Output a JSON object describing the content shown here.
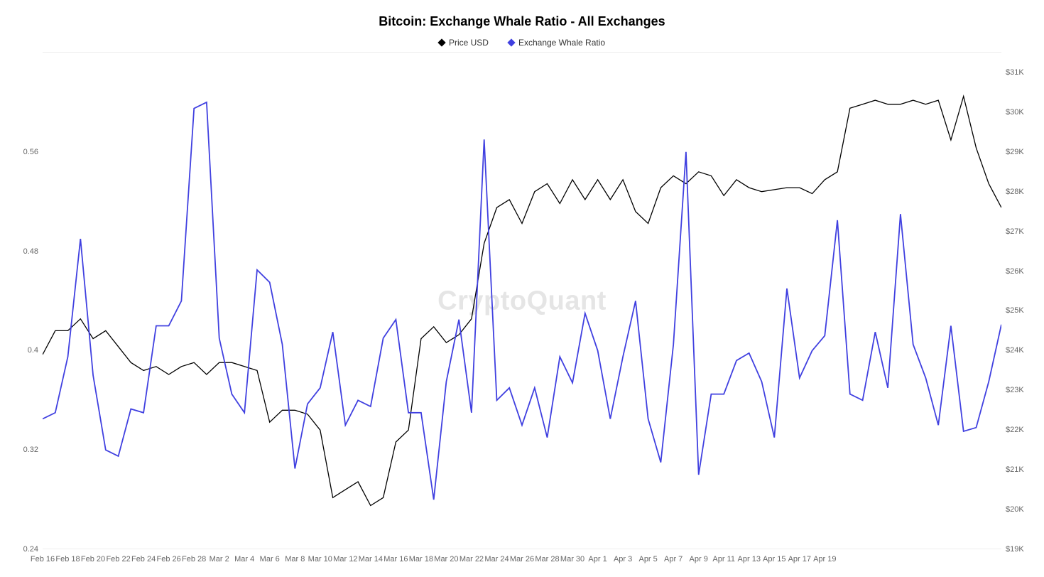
{
  "chart": {
    "type": "line-dual-axis",
    "title": "Bitcoin: Exchange Whale Ratio - All Exchanges",
    "title_fontsize": 18,
    "title_weight": 700,
    "watermark": "CryptoQuant",
    "watermark_color": "#d0d0d0",
    "background_color": "#ffffff",
    "grid_color": "#eeeeee",
    "axis_label_color": "#666666",
    "axis_label_fontsize": 11,
    "legend": [
      {
        "label": "Price USD",
        "color": "#000000",
        "marker": "diamond"
      },
      {
        "label": "Exchange Whale Ratio",
        "color": "#4040e0",
        "marker": "diamond"
      }
    ],
    "x": {
      "labels": [
        "Feb 16",
        "Feb 18",
        "Feb 20",
        "Feb 22",
        "Feb 24",
        "Feb 26",
        "Feb 28",
        "Mar 2",
        "Mar 4",
        "Mar 6",
        "Mar 8",
        "Mar 10",
        "Mar 12",
        "Mar 14",
        "Mar 16",
        "Mar 18",
        "Mar 20",
        "Mar 22",
        "Mar 24",
        "Mar 26",
        "Mar 28",
        "Mar 30",
        "Apr 1",
        "Apr 3",
        "Apr 5",
        "Apr 7",
        "Apr 9",
        "Apr 11",
        "Apr 13",
        "Apr 15",
        "Apr 17",
        "Apr 19"
      ],
      "tick_step": 1
    },
    "y_left": {
      "axis": "Exchange Whale Ratio",
      "min": 0.24,
      "max": 0.64,
      "ticks": [
        0.24,
        0.32,
        0.4,
        0.48,
        0.56
      ],
      "color": "#4040e0",
      "line_width": 1.8
    },
    "y_right": {
      "axis": "Price USD",
      "min": 19000,
      "max": 31500,
      "ticks": [
        19000,
        20000,
        21000,
        22000,
        23000,
        24000,
        25000,
        26000,
        27000,
        28000,
        29000,
        30000,
        31000
      ],
      "tick_labels": [
        "$19K",
        "$20K",
        "$21K",
        "$22K",
        "$23K",
        "$24K",
        "$25K",
        "$26K",
        "$27K",
        "$28K",
        "$29K",
        "$30K",
        "$31K"
      ],
      "color": "#000000",
      "line_width": 1.3
    },
    "series_price": [
      23900,
      24500,
      24500,
      24800,
      24300,
      24500,
      24100,
      23700,
      23500,
      23600,
      23400,
      23600,
      23700,
      23400,
      23700,
      23700,
      23600,
      23500,
      22200,
      22500,
      22500,
      22400,
      22000,
      20300,
      20500,
      20700,
      20100,
      20300,
      21700,
      22000,
      24300,
      24600,
      24200,
      24400,
      24800,
      26700,
      27600,
      27800,
      27200,
      28000,
      28200,
      27700,
      28300,
      27800,
      28300,
      27800,
      28300,
      27500,
      27200,
      28100,
      28400,
      28200,
      28500,
      28400,
      27900,
      28300,
      28100,
      28000,
      28050,
      28100,
      28100,
      27950,
      28300,
      28500,
      30100,
      30200,
      30300,
      30200,
      30200,
      30300,
      30200,
      30300,
      29300,
      30400,
      29100,
      28200,
      27600
    ],
    "series_whale": [
      0.345,
      0.35,
      0.395,
      0.49,
      0.38,
      0.32,
      0.315,
      0.353,
      0.35,
      0.42,
      0.42,
      0.44,
      0.595,
      0.6,
      0.41,
      0.365,
      0.35,
      0.465,
      0.455,
      0.405,
      0.305,
      0.357,
      0.37,
      0.415,
      0.34,
      0.36,
      0.355,
      0.41,
      0.425,
      0.35,
      0.35,
      0.28,
      0.375,
      0.425,
      0.35,
      0.57,
      0.36,
      0.37,
      0.34,
      0.37,
      0.33,
      0.395,
      0.374,
      0.43,
      0.4,
      0.345,
      0.395,
      0.44,
      0.345,
      0.31,
      0.405,
      0.56,
      0.3,
      0.365,
      0.365,
      0.392,
      0.398,
      0.375,
      0.33,
      0.45,
      0.378,
      0.4,
      0.412,
      0.505,
      0.365,
      0.36,
      0.415,
      0.37,
      0.51,
      0.405,
      0.378,
      0.34,
      0.42,
      0.335,
      0.338,
      0.375,
      0.421
    ]
  }
}
